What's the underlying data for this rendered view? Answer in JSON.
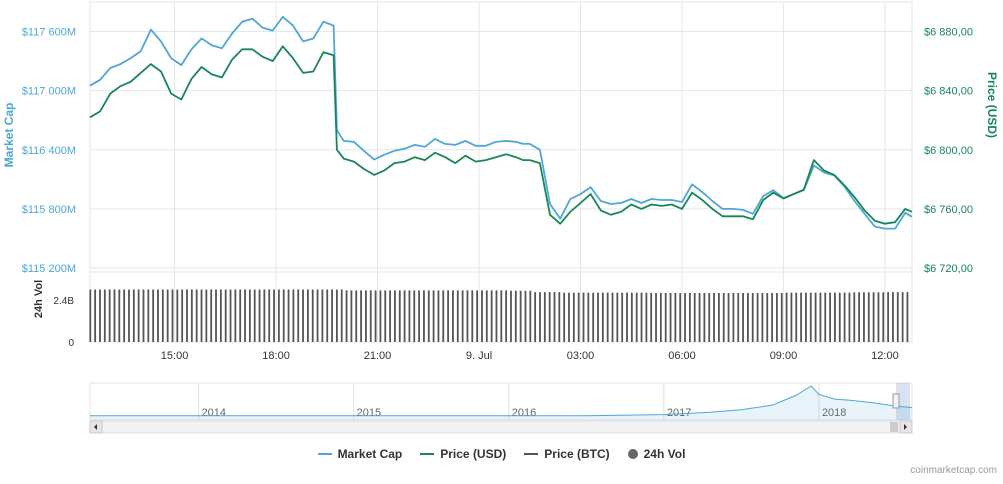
{
  "chart_data": {
    "type": "line",
    "y_left": {
      "label": "Market Cap",
      "ticks": [
        "$117 600M",
        "$117 000M",
        "$116 400M",
        "$115 800M",
        "$115 200M"
      ],
      "tick_values": [
        117600,
        117000,
        116400,
        115800,
        115200
      ],
      "range": [
        115200,
        117900
      ],
      "unit": "M USD"
    },
    "y_right": {
      "label": "Price (USD)",
      "ticks": [
        "$6 880,00",
        "$6 840,00",
        "$6 800,00",
        "$6 760,00",
        "$6 720,00"
      ],
      "tick_values": [
        6880,
        6840,
        6800,
        6760,
        6720
      ],
      "range": [
        6720,
        6900
      ]
    },
    "volume_axis": {
      "label": "24h Vol",
      "ticks": [
        "2.4B",
        "0"
      ],
      "tick_values": [
        2.4,
        0
      ],
      "range": [
        0,
        4.0
      ],
      "unit": "B"
    },
    "x_axis": {
      "ticks": [
        "15:00",
        "18:00",
        "21:00",
        "9. Jul",
        "03:00",
        "06:00",
        "09:00",
        "12:00"
      ],
      "tick_hours": [
        15,
        18,
        21,
        24,
        27,
        30,
        33,
        36
      ],
      "range": [
        12.5,
        36.8
      ]
    },
    "series": [
      {
        "name": "Market Cap",
        "color": "#4ea7d6",
        "x": [
          12.5,
          12.8,
          13.1,
          13.4,
          13.7,
          14.0,
          14.3,
          14.6,
          14.9,
          15.2,
          15.5,
          15.8,
          16.1,
          16.4,
          16.7,
          17.0,
          17.3,
          17.6,
          17.9,
          18.2,
          18.5,
          18.8,
          19.1,
          19.4,
          19.7,
          19.8,
          20.0,
          20.3,
          20.6,
          20.9,
          21.2,
          21.5,
          21.8,
          22.1,
          22.4,
          22.7,
          23.0,
          23.3,
          23.6,
          23.9,
          24.2,
          24.5,
          24.8,
          25.1,
          25.3,
          25.5,
          25.8,
          26.1,
          26.4,
          26.7,
          27.0,
          27.3,
          27.6,
          27.9,
          28.2,
          28.5,
          28.8,
          29.1,
          29.4,
          29.7,
          30.0,
          30.3,
          30.6,
          30.9,
          31.2,
          31.5,
          31.8,
          32.1,
          32.4,
          32.7,
          33.0,
          33.3,
          33.6,
          33.9,
          34.2,
          34.5,
          34.8,
          35.1,
          35.4,
          35.7,
          36.0,
          36.3,
          36.6,
          36.8
        ],
        "values": [
          117050,
          117110,
          117230,
          117270,
          117330,
          117400,
          117620,
          117500,
          117330,
          117260,
          117420,
          117530,
          117460,
          117430,
          117580,
          117700,
          117730,
          117640,
          117610,
          117750,
          117660,
          117500,
          117530,
          117700,
          117660,
          116600,
          116490,
          116480,
          116390,
          116300,
          116350,
          116390,
          116410,
          116450,
          116430,
          116510,
          116460,
          116450,
          116490,
          116440,
          116440,
          116480,
          116490,
          116480,
          116460,
          116460,
          116400,
          115850,
          115700,
          115900,
          115950,
          116020,
          115880,
          115850,
          115860,
          115900,
          115860,
          115900,
          115890,
          115890,
          115870,
          116050,
          115970,
          115880,
          115800,
          115800,
          115790,
          115750,
          115930,
          115990,
          115910,
          115950,
          115990,
          116240,
          116170,
          116140,
          116030,
          115880,
          115750,
          115620,
          115600,
          115600,
          115760,
          115720
        ]
      },
      {
        "name": "Price (USD)",
        "color": "#188658",
        "x": [
          12.5,
          12.8,
          13.1,
          13.4,
          13.7,
          14.0,
          14.3,
          14.6,
          14.9,
          15.2,
          15.5,
          15.8,
          16.1,
          16.4,
          16.7,
          17.0,
          17.3,
          17.6,
          17.9,
          18.2,
          18.5,
          18.8,
          19.1,
          19.4,
          19.7,
          19.8,
          20.0,
          20.3,
          20.6,
          20.9,
          21.2,
          21.5,
          21.8,
          22.1,
          22.4,
          22.7,
          23.0,
          23.3,
          23.6,
          23.9,
          24.2,
          24.5,
          24.8,
          25.1,
          25.3,
          25.5,
          25.8,
          26.1,
          26.4,
          26.7,
          27.0,
          27.3,
          27.6,
          27.9,
          28.2,
          28.5,
          28.8,
          29.1,
          29.4,
          29.7,
          30.0,
          30.3,
          30.6,
          30.9,
          31.2,
          31.5,
          31.8,
          32.1,
          32.4,
          32.7,
          33.0,
          33.3,
          33.6,
          33.9,
          34.2,
          34.5,
          34.8,
          35.1,
          35.4,
          35.7,
          36.0,
          36.3,
          36.6,
          36.8
        ],
        "values": [
          6822,
          6826,
          6838,
          6843,
          6846,
          6852,
          6858,
          6853,
          6838,
          6834,
          6848,
          6856,
          6851,
          6849,
          6861,
          6868,
          6868,
          6863,
          6860,
          6870,
          6862,
          6852,
          6853,
          6866,
          6864,
          6800,
          6794,
          6792,
          6787,
          6783,
          6786,
          6791,
          6792,
          6795,
          6793,
          6798,
          6795,
          6791,
          6796,
          6792,
          6793,
          6795,
          6797,
          6795,
          6793,
          6793,
          6791,
          6756,
          6750,
          6758,
          6764,
          6770,
          6759,
          6756,
          6758,
          6763,
          6760,
          6763,
          6762,
          6763,
          6760,
          6771,
          6766,
          6760,
          6755,
          6755,
          6755,
          6753,
          6766,
          6771,
          6767,
          6770,
          6773,
          6793,
          6786,
          6783,
          6776,
          6768,
          6759,
          6752,
          6750,
          6751,
          6760,
          6758
        ]
      },
      {
        "name": "Price (BTC)",
        "color": "#555555",
        "x": [],
        "values": []
      },
      {
        "name": "24h Vol",
        "color": "#666666",
        "type": "bar",
        "x": [
          12.5,
          20.0,
          20.5,
          21.5,
          24.8,
          25.6,
          26.5,
          29.0,
          32.0,
          33.0,
          34.0,
          35.0,
          36.0,
          36.8
        ],
        "values": [
          3.0,
          2.95,
          2.95,
          2.95,
          2.93,
          2.85,
          2.82,
          2.8,
          2.8,
          2.82,
          2.82,
          2.84,
          2.85,
          2.85
        ]
      }
    ],
    "navigator": {
      "years": [
        "2014",
        "2015",
        "2016",
        "2017",
        "2018"
      ],
      "year_positions": [
        2014,
        2015,
        2016,
        2017,
        2018
      ],
      "range": [
        2013.3,
        2018.6
      ],
      "overview_x": [
        2013.3,
        2014.0,
        2015.0,
        2016.0,
        2016.5,
        2017.0,
        2017.3,
        2017.5,
        2017.7,
        2017.85,
        2017.95,
        2018.0,
        2018.1,
        2018.2,
        2018.35,
        2018.5,
        2018.6
      ],
      "overview_values": [
        1,
        1,
        1,
        1,
        1,
        2,
        4,
        6,
        10,
        18,
        26,
        19,
        15,
        14,
        12,
        9,
        8
      ]
    },
    "legend": [
      "Market Cap",
      "Price (USD)",
      "Price (BTC)",
      "24h Vol"
    ],
    "legend_placement": "bottom-center"
  },
  "credits": "coinmarketcap.com"
}
